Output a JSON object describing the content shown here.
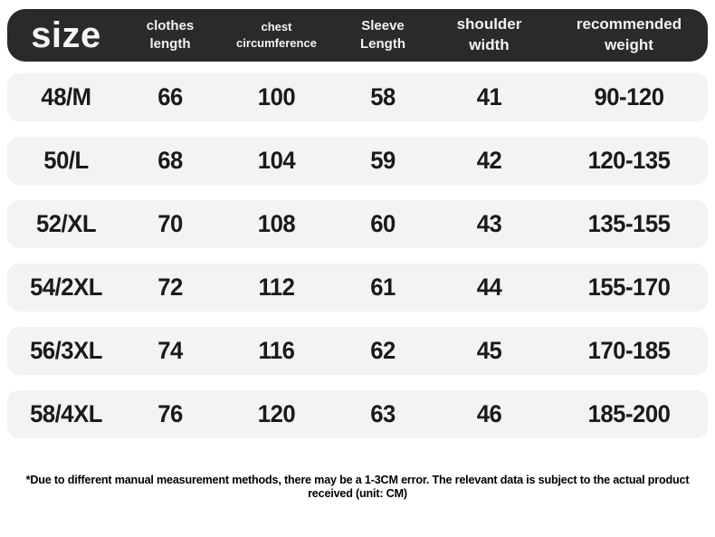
{
  "header": {
    "size_label": "size",
    "clothes_length": {
      "line1": "clothes",
      "line2": "length"
    },
    "chest_circumference": {
      "line1": "chest",
      "line2": "circumference"
    },
    "sleeve_length": {
      "line1": "Sleeve",
      "line2": "Length"
    },
    "shoulder_width": {
      "line1": "shoulder",
      "line2": "width"
    },
    "recommended_weight": "recommended weight"
  },
  "rows": [
    {
      "size": "48/M",
      "clothes_length": "66",
      "chest_circumference": "100",
      "sleeve_length": "58",
      "shoulder_width": "41",
      "recommended_weight": "90-120"
    },
    {
      "size": "50/L",
      "clothes_length": "68",
      "chest_circumference": "104",
      "sleeve_length": "59",
      "shoulder_width": "42",
      "recommended_weight": "120-135"
    },
    {
      "size": "52/XL",
      "clothes_length": "70",
      "chest_circumference": "108",
      "sleeve_length": "60",
      "shoulder_width": "43",
      "recommended_weight": "135-155"
    },
    {
      "size": "54/2XL",
      "clothes_length": "72",
      "chest_circumference": "112",
      "sleeve_length": "61",
      "shoulder_width": "44",
      "recommended_weight": "155-170"
    },
    {
      "size": "56/3XL",
      "clothes_length": "74",
      "chest_circumference": "116",
      "sleeve_length": "62",
      "shoulder_width": "45",
      "recommended_weight": "170-185"
    },
    {
      "size": "58/4XL",
      "clothes_length": "76",
      "chest_circumference": "120",
      "sleeve_length": "63",
      "shoulder_width": "46",
      "recommended_weight": "185-200"
    }
  ],
  "footnote": "*Due to different manual measurement methods, there may be a 1-3CM error. The relevant data is subject to the actual product received (unit: CM)",
  "colors": {
    "header_bg": "#2a2a2a",
    "header_text": "#f2f2f2",
    "row_bg": "#f3f3f4",
    "body_text": "#1a1a1a",
    "footnote_text": "#000000"
  },
  "chart_data": {
    "type": "table",
    "title": "size",
    "columns": [
      "size",
      "clothes length",
      "chest circumference",
      "Sleeve Length",
      "shoulder width",
      "recommended weight"
    ],
    "rows": [
      [
        "48/M",
        66,
        100,
        58,
        41,
        "90-120"
      ],
      [
        "50/L",
        68,
        104,
        59,
        42,
        "120-135"
      ],
      [
        "52/XL",
        70,
        108,
        60,
        43,
        "135-155"
      ],
      [
        "54/2XL",
        72,
        112,
        61,
        44,
        "155-170"
      ],
      [
        "56/3XL",
        74,
        116,
        62,
        45,
        "170-185"
      ],
      [
        "58/4XL",
        76,
        120,
        63,
        46,
        "185-200"
      ]
    ],
    "unit": "CM",
    "note": "*Due to different manual measurement methods, there may be a 1-3CM error. The relevant data is subject to the actual product received (unit: CM)"
  }
}
